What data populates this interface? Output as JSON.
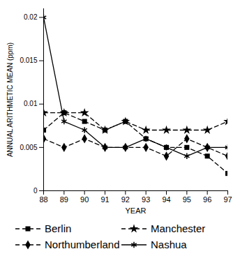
{
  "chart_data": {
    "type": "line",
    "x_label": "YEAR",
    "y_label": "ANNUAL ARITHMETIC MEAN (ppm)",
    "x": [
      88,
      89,
      90,
      91,
      92,
      93,
      94,
      95,
      96,
      97
    ],
    "xlim": [
      88,
      97
    ],
    "xticks": [
      88,
      89,
      90,
      91,
      92,
      93,
      94,
      95,
      96,
      97
    ],
    "ylim": [
      0,
      0.021
    ],
    "yticks": [
      0,
      0.005,
      0.01,
      0.015,
      0.02
    ],
    "grid": false,
    "legend": "bottom",
    "series": [
      {
        "name": "Berlin",
        "color": "#000000",
        "marker": "square",
        "line_style": "dashed",
        "values": [
          0.007,
          0.009,
          0.008,
          0.007,
          0.008,
          0.006,
          0.005,
          0.005,
          0.004,
          0.002
        ]
      },
      {
        "name": "Manchester",
        "color": "#000000",
        "marker": "star",
        "line_style": "dashed",
        "values": [
          0.009,
          0.009,
          0.009,
          0.007,
          0.008,
          0.007,
          0.007,
          0.007,
          0.007,
          0.008
        ]
      },
      {
        "name": "Northumberland",
        "color": "#000000",
        "marker": "diamond",
        "line_style": "dashed",
        "values": [
          0.006,
          0.005,
          0.006,
          0.005,
          0.005,
          0.005,
          0.004,
          0.006,
          0.005,
          0.004
        ]
      },
      {
        "name": "Nashua",
        "color": "#000000",
        "marker": "asterisk",
        "line_style": "solid",
        "values": [
          0.02,
          0.008,
          0.007,
          0.005,
          0.005,
          0.006,
          0.005,
          0.004,
          0.005,
          0.005
        ]
      }
    ]
  }
}
